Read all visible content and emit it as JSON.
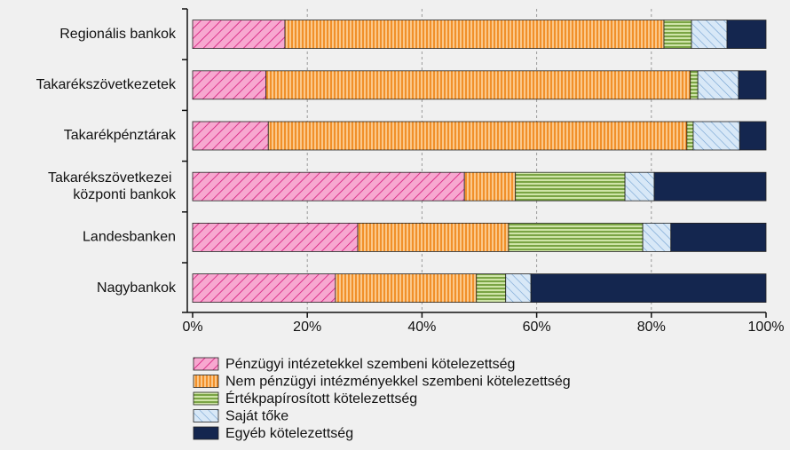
{
  "chart_data": {
    "type": "stacked-barh",
    "categories": [
      "Regionális bankok",
      "Takarékszövetkezetek",
      "Takarékpénztárak",
      "Takarékszövetkezei központi bankok",
      "Landesbanken",
      "Nagybankok"
    ],
    "series": [
      {
        "name": "Pénzügyi intézetekkel szembeni kötelezettség",
        "color": "#f7a8d0",
        "values": [
          16.1,
          12.8,
          13.2,
          47.4,
          28.8,
          24.9
        ]
      },
      {
        "name": "Nem pénzügyi intézményekkel szembeni kötelezettség",
        "color": "#f9a44a",
        "values": [
          66.1,
          74.0,
          73.0,
          8.9,
          26.3,
          24.6
        ]
      },
      {
        "name": "Értékpapírosított kötelezettség",
        "color": "#9cc45c",
        "values": [
          4.8,
          1.3,
          1.1,
          19.1,
          23.4,
          5.1
        ]
      },
      {
        "name": "Saját tőke",
        "color": "#c6dcf2",
        "values": [
          6.2,
          7.1,
          8.1,
          5.1,
          4.9,
          4.4
        ]
      },
      {
        "name": "Egyéb kötelezettség",
        "color": "#14264f",
        "values": [
          6.8,
          4.8,
          4.6,
          19.5,
          16.6,
          41.0
        ]
      }
    ],
    "xlim": [
      0,
      100
    ],
    "xticks": [
      {
        "value": 0,
        "label": "0%"
      },
      {
        "value": 20,
        "label": "20%"
      },
      {
        "value": 40,
        "label": "40%"
      },
      {
        "value": 60,
        "label": "60%"
      },
      {
        "value": 80,
        "label": "80%"
      },
      {
        "value": 100,
        "label": "100%"
      }
    ],
    "grid": true
  }
}
